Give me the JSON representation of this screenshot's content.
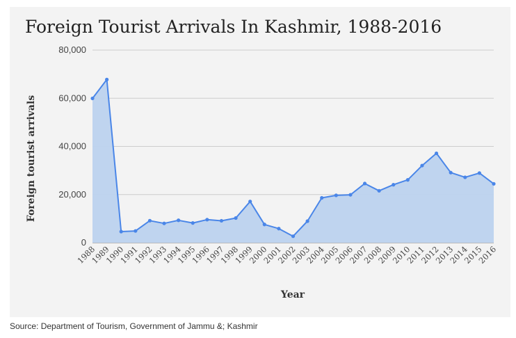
{
  "source": "Source: Department of Tourism, Government of Jammu &; Kashmir",
  "chart_data": {
    "type": "area",
    "title": "Foreign Tourist Arrivals In Kashmir, 1988-2016",
    "xlabel": "Year",
    "ylabel": "Foreign tourist arrivals",
    "ylim": [
      0,
      80000
    ],
    "yticks": [
      "0",
      "20,000",
      "40,000",
      "60,000",
      "80,000"
    ],
    "grid": "horizontal",
    "categories": [
      "1988",
      "1989",
      "1990",
      "1991",
      "1992",
      "1993",
      "1994",
      "1995",
      "1996",
      "1997",
      "1998",
      "1999",
      "2000",
      "2001",
      "2002",
      "2003",
      "2004",
      "2005",
      "2006",
      "2007",
      "2008",
      "2009",
      "2010",
      "2011",
      "2012",
      "2013",
      "2014",
      "2015",
      "2016"
    ],
    "values": [
      59938,
      67762,
      4627,
      4887,
      9149,
      8026,
      9314,
      8198,
      9592,
      9111,
      10247,
      17130,
      7575,
      5859,
      2686,
      8959,
      18634,
      19680,
      19901,
      24576,
      21570,
      24080,
      26105,
      32033,
      37131,
      29118,
      27163,
      28927,
      24460
    ],
    "colors": {
      "line": "#4a86e8",
      "fill": "#bcd2ee",
      "grid": "#cccccc"
    }
  }
}
